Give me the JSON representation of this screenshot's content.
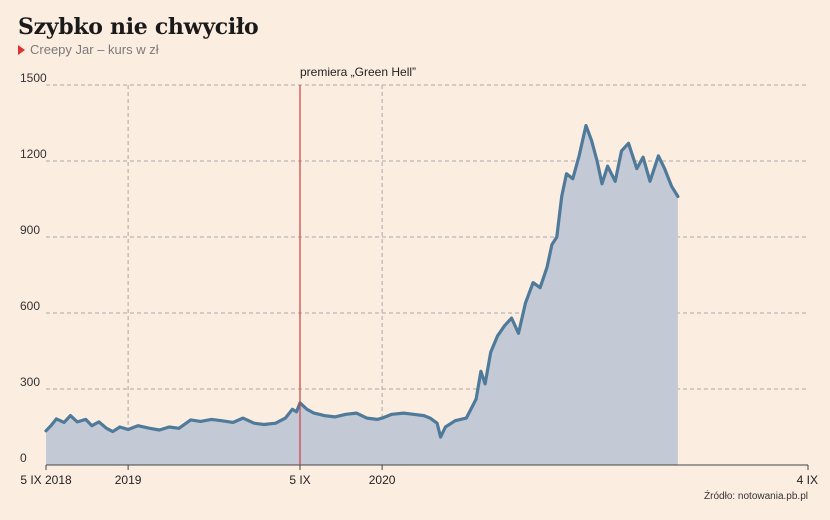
{
  "title": "Szybko nie chwyciło",
  "subtitle": "Creepy Jar – kurs w zł",
  "source": "Źródło: notowania.pb.pl",
  "colors": {
    "line": "#4f7a9a",
    "area": "#c4c9d6",
    "marker": "#d04040",
    "grid": "#a9a9a9",
    "background": "#fcede1"
  },
  "chart_data": {
    "type": "area",
    "title": "Szybko nie chwyciło",
    "subtitle": "Creepy Jar – kurs w zł",
    "ylim": [
      0,
      1500
    ],
    "yticks": [
      0,
      300,
      600,
      900,
      1200,
      1500
    ],
    "xlim": [
      "2018-09-05",
      "2021-09-04"
    ],
    "xtick_labels": [
      {
        "date": "2018-09-05",
        "label": "5 IX 2018"
      },
      {
        "date": "2019-01-01",
        "label": "2019"
      },
      {
        "date": "2019-09-05",
        "label": "5 IX"
      },
      {
        "date": "2020-01-01",
        "label": "2020"
      },
      {
        "date": "2021-09-04",
        "label": "4 IX"
      }
    ],
    "annotation": {
      "date": "2019-09-05",
      "label": "premiera „Green Hell”"
    },
    "grid": true,
    "series": [
      {
        "points": [
          [
            "2018-09-05",
            135
          ],
          [
            "2018-09-12",
            155
          ],
          [
            "2018-09-20",
            182
          ],
          [
            "2018-10-01",
            168
          ],
          [
            "2018-10-10",
            195
          ],
          [
            "2018-10-20",
            170
          ],
          [
            "2018-11-01",
            180
          ],
          [
            "2018-11-10",
            155
          ],
          [
            "2018-11-20",
            170
          ],
          [
            "2018-12-01",
            145
          ],
          [
            "2018-12-10",
            132
          ],
          [
            "2018-12-20",
            150
          ],
          [
            "2019-01-01",
            140
          ],
          [
            "2019-01-15",
            155
          ],
          [
            "2019-02-01",
            145
          ],
          [
            "2019-02-15",
            138
          ],
          [
            "2019-03-01",
            150
          ],
          [
            "2019-03-15",
            145
          ],
          [
            "2019-04-01",
            178
          ],
          [
            "2019-04-15",
            172
          ],
          [
            "2019-05-01",
            180
          ],
          [
            "2019-05-15",
            175
          ],
          [
            "2019-06-01",
            168
          ],
          [
            "2019-06-15",
            185
          ],
          [
            "2019-07-01",
            165
          ],
          [
            "2019-07-15",
            160
          ],
          [
            "2019-08-01",
            165
          ],
          [
            "2019-08-15",
            185
          ],
          [
            "2019-08-25",
            220
          ],
          [
            "2019-08-31",
            210
          ],
          [
            "2019-09-05",
            245
          ],
          [
            "2019-09-15",
            220
          ],
          [
            "2019-09-25",
            205
          ],
          [
            "2019-10-10",
            195
          ],
          [
            "2019-10-25",
            190
          ],
          [
            "2019-11-10",
            200
          ],
          [
            "2019-11-25",
            205
          ],
          [
            "2019-12-10",
            185
          ],
          [
            "2019-12-25",
            180
          ],
          [
            "2020-01-01",
            185
          ],
          [
            "2020-01-15",
            200
          ],
          [
            "2020-02-01",
            205
          ],
          [
            "2020-02-15",
            200
          ],
          [
            "2020-03-01",
            195
          ],
          [
            "2020-03-10",
            185
          ],
          [
            "2020-03-20",
            165
          ],
          [
            "2020-03-25",
            110
          ],
          [
            "2020-04-01",
            150
          ],
          [
            "2020-04-15",
            175
          ],
          [
            "2020-05-01",
            185
          ],
          [
            "2020-05-15",
            260
          ],
          [
            "2020-05-22",
            370
          ],
          [
            "2020-05-28",
            320
          ],
          [
            "2020-06-05",
            445
          ],
          [
            "2020-06-15",
            510
          ],
          [
            "2020-06-25",
            550
          ],
          [
            "2020-07-05",
            580
          ],
          [
            "2020-07-15",
            520
          ],
          [
            "2020-07-25",
            640
          ],
          [
            "2020-08-05",
            720
          ],
          [
            "2020-08-15",
            700
          ],
          [
            "2020-08-25",
            780
          ],
          [
            "2020-09-01",
            870
          ],
          [
            "2020-09-08",
            900
          ],
          [
            "2020-09-15",
            1060
          ],
          [
            "2020-09-22",
            1150
          ],
          [
            "2020-10-01",
            1130
          ],
          [
            "2020-10-10",
            1220
          ],
          [
            "2020-10-20",
            1340
          ],
          [
            "2020-10-28",
            1280
          ],
          [
            "2020-11-05",
            1200
          ],
          [
            "2020-11-12",
            1110
          ],
          [
            "2020-11-20",
            1180
          ],
          [
            "2020-12-01",
            1120
          ],
          [
            "2020-12-10",
            1240
          ],
          [
            "2020-12-20",
            1270
          ],
          [
            "2021-01-01",
            1170
          ],
          [
            "2021-01-10",
            1215
          ],
          [
            "2021-01-20",
            1120
          ],
          [
            "2021-02-01",
            1220
          ],
          [
            "2021-02-10",
            1170
          ],
          [
            "2021-02-20",
            1100
          ],
          [
            "2021-03-01",
            1060
          ]
        ]
      }
    ]
  }
}
